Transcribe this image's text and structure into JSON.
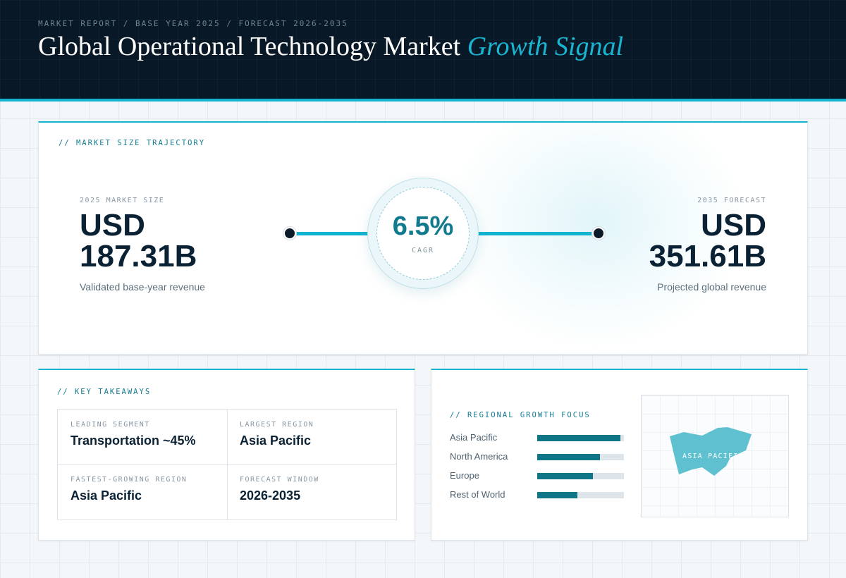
{
  "header": {
    "eyebrow": "MARKET REPORT / BASE YEAR 2025 / FORECAST 2026-2035",
    "title_main": "Global Operational Technology Market",
    "title_accent": "Growth Signal"
  },
  "trajectory": {
    "section_label": "// MARKET SIZE TRAJECTORY",
    "start": {
      "label": "2025 MARKET SIZE",
      "currency": "USD",
      "amount": "187.31B",
      "caption": "Validated base-year revenue"
    },
    "end": {
      "label": "2035 FORECAST",
      "currency": "USD",
      "amount": "351.61B",
      "caption": "Projected global revenue"
    },
    "cagr": {
      "value": "6.5%",
      "label": "CAGR"
    }
  },
  "takeaways": {
    "section_label": "// KEY TAKEAWAYS",
    "items": [
      {
        "label": "LEADING SEGMENT",
        "value": "Transportation ~45%"
      },
      {
        "label": "LARGEST REGION",
        "value": "Asia Pacific"
      },
      {
        "label": "FASTEST-GROWING REGION",
        "value": "Asia Pacific"
      },
      {
        "label": "FORECAST WINDOW",
        "value": "2026-2035"
      }
    ]
  },
  "regional": {
    "section_label": "// REGIONAL GROWTH FOCUS",
    "bars": [
      {
        "name": "Asia Pacific",
        "level": 0.96
      },
      {
        "name": "North America",
        "level": 0.72
      },
      {
        "name": "Europe",
        "level": 0.64
      },
      {
        "name": "Rest of World",
        "level": 0.46
      }
    ],
    "map_label": "ASIA PACIFIC",
    "map_color": "#5fc0cf"
  },
  "colors": {
    "accent": "#12b3cf",
    "accent_dark": "#127a8f",
    "header_bg": "#081826",
    "bar_fill": "#0f7687"
  }
}
